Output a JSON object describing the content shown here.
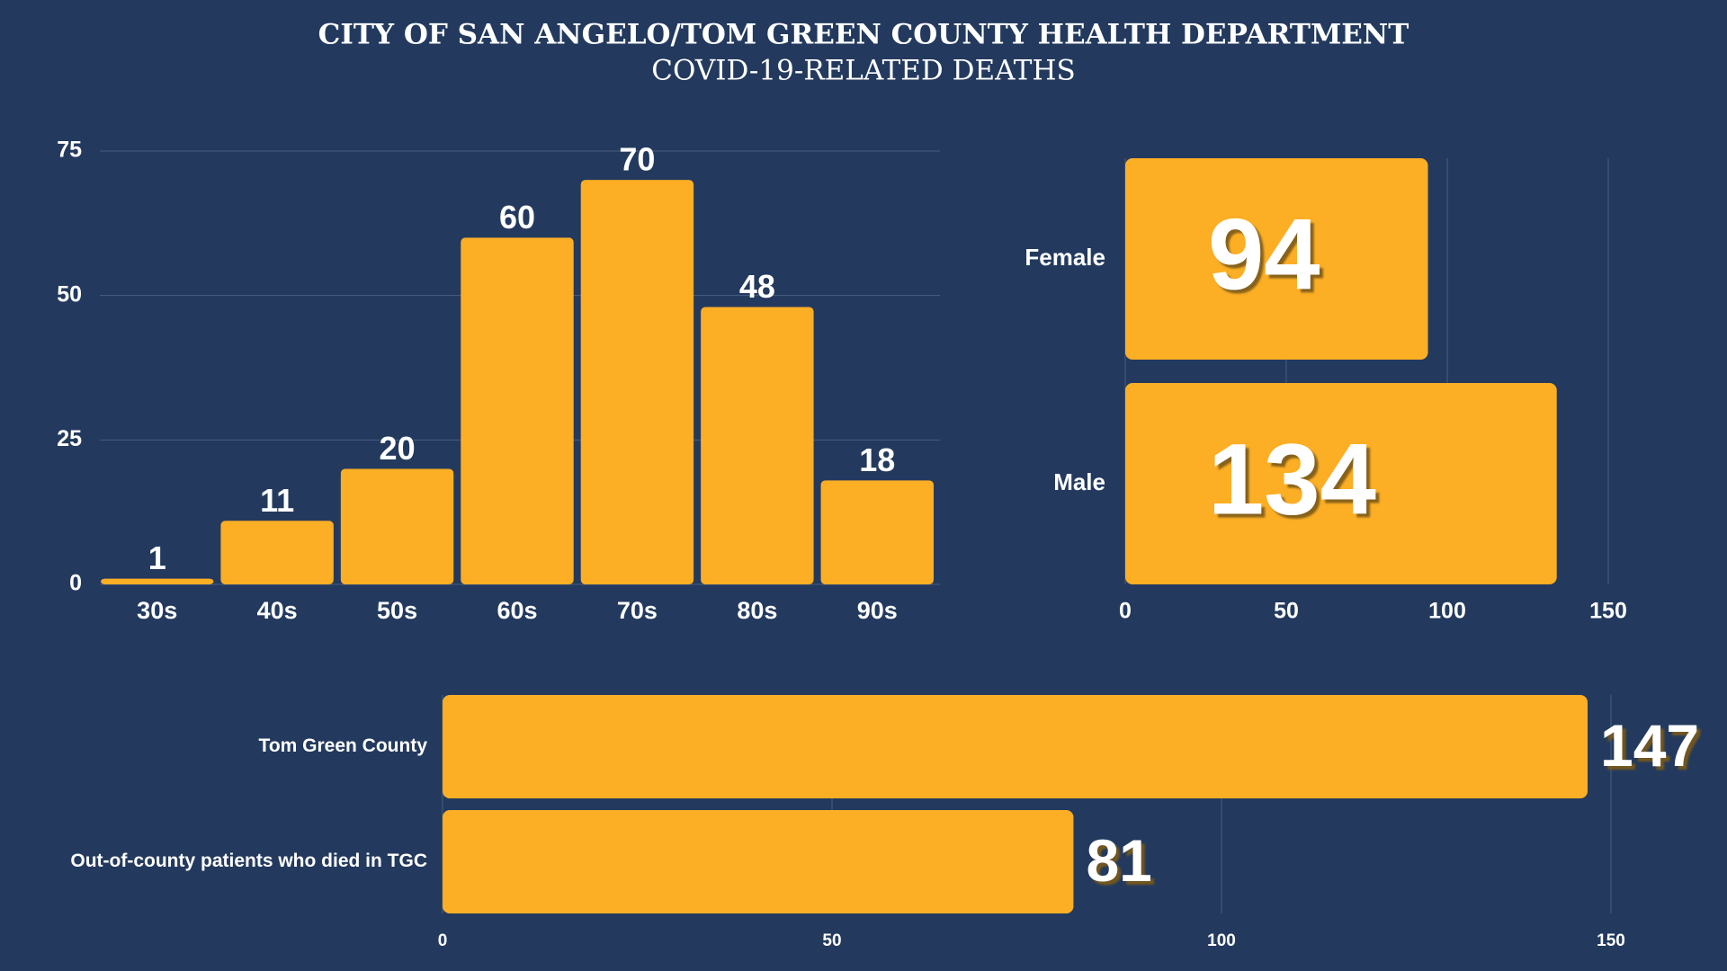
{
  "header": {
    "title": "CITY OF SAN ANGELO/TOM GREEN COUNTY HEALTH DEPARTMENT",
    "subtitle": "COVID-19-RELATED DEATHS"
  },
  "chart_data": [
    {
      "type": "bar",
      "categories": [
        "30s",
        "40s",
        "50s",
        "60s",
        "70s",
        "80s",
        "90s"
      ],
      "values": [
        1,
        11,
        20,
        60,
        70,
        48,
        18
      ],
      "color": "#fcae25",
      "ylim": [
        0,
        75
      ],
      "yticks": [
        0,
        25,
        50,
        75
      ],
      "grid": true
    },
    {
      "type": "hbar",
      "categories": [
        "Female",
        "Male"
      ],
      "values": [
        94,
        134
      ],
      "color": "#fcae25",
      "xlim": [
        0,
        150
      ],
      "xticks": [
        0,
        50,
        100,
        150
      ],
      "grid": true
    },
    {
      "type": "hbar",
      "categories": [
        "Tom Green County",
        "Out-of-county patients who died in TGC"
      ],
      "values": [
        147,
        81
      ],
      "color": "#fcae25",
      "xlim": [
        0,
        150
      ],
      "xticks": [
        0,
        50,
        100,
        150
      ],
      "grid": true
    }
  ]
}
